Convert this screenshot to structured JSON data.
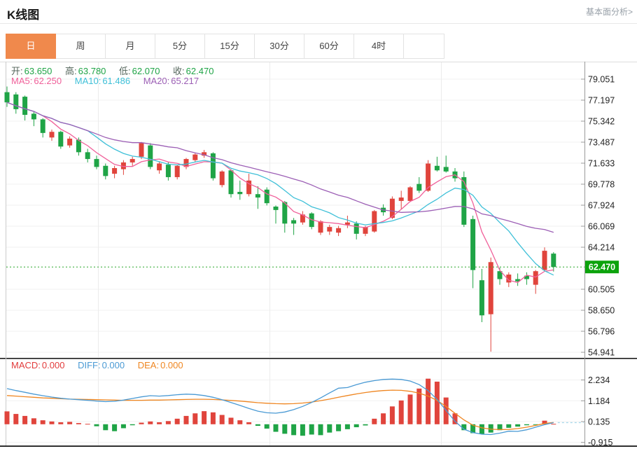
{
  "header": {
    "title": "K线图",
    "link": "基本面分析>"
  },
  "tabs": {
    "items": [
      "日",
      "周",
      "月",
      "5分",
      "15分",
      "30分",
      "60分",
      "4时"
    ],
    "selected": "日",
    "selected_index": 0,
    "selected_color": "#f0894c"
  },
  "main_legend": {
    "ohlc": [
      {
        "label": "开:",
        "value": "63.650"
      },
      {
        "label": "高:",
        "value": "63.780"
      },
      {
        "label": "低:",
        "value": "62.070"
      },
      {
        "label": "收:",
        "value": "62.470"
      }
    ],
    "ma": [
      {
        "label": "MA5:",
        "value": "62.250",
        "color": "#f0609a"
      },
      {
        "label": "MA10:",
        "value": "61.486",
        "color": "#3fc0d8"
      },
      {
        "label": "MA20:",
        "value": "65.217",
        "color": "#9c5fb5"
      }
    ]
  },
  "macd_legend": [
    {
      "label": "MACD:",
      "value": "0.000",
      "color": "#e23b3b"
    },
    {
      "label": "DIFF:",
      "value": "0.000",
      "color": "#4a9ad4"
    },
    {
      "label": "DEA:",
      "value": "0.000",
      "color": "#ef8621"
    }
  ],
  "colors": {
    "up": "#e0443c",
    "down": "#1fa446",
    "price_line": "#2aa52a",
    "price_badge": "#0ca30c",
    "diff_line": "#4a9ad4",
    "dea_line": "#ef8621",
    "dash_ext": "#a5d8ea",
    "grid": "#f0f0f0",
    "vgrid": "#ececec",
    "axis": "#999999",
    "tick_text": "#222222"
  },
  "chart_data": [
    {
      "type": "candlestick",
      "title": "K线图 (日K)",
      "legend_position": "top-left",
      "grid": true,
      "y_ticks": [
        79.051,
        77.197,
        75.342,
        73.487,
        71.633,
        69.778,
        67.924,
        66.069,
        64.214,
        60.505,
        58.65,
        56.796,
        54.941
      ],
      "ylim": [
        54.0,
        79.6
      ],
      "current_price": 62.47,
      "current_price_label": "62.470",
      "ma_periods": [
        5,
        10,
        20
      ],
      "ma_values_shown": {
        "MA5": 62.25,
        "MA10": 61.486,
        "MA20": 65.217
      },
      "ohlc_shown": {
        "open": 63.65,
        "high": 63.78,
        "low": 62.07,
        "close": 62.47
      },
      "candles_format": [
        "open",
        "high",
        "low",
        "close"
      ],
      "candles": [
        [
          77.9,
          78.4,
          76.6,
          77.0
        ],
        [
          77.7,
          77.9,
          76.0,
          76.4
        ],
        [
          77.5,
          77.6,
          75.4,
          75.9
        ],
        [
          76.0,
          76.2,
          74.9,
          75.5
        ],
        [
          75.5,
          75.6,
          73.9,
          74.3
        ],
        [
          73.9,
          74.6,
          73.6,
          74.4
        ],
        [
          74.4,
          74.5,
          72.9,
          73.1
        ],
        [
          73.2,
          74.0,
          73.0,
          73.8
        ],
        [
          73.7,
          73.9,
          72.3,
          72.6
        ],
        [
          72.6,
          72.9,
          71.7,
          72.0
        ],
        [
          72.0,
          72.3,
          71.1,
          71.3
        ],
        [
          71.4,
          71.6,
          70.2,
          70.5
        ],
        [
          70.7,
          71.4,
          70.3,
          71.2
        ],
        [
          71.1,
          71.9,
          70.6,
          71.7
        ],
        [
          71.7,
          72.2,
          71.4,
          72.0
        ],
        [
          72.2,
          73.5,
          72.0,
          73.4
        ],
        [
          73.2,
          73.4,
          71.1,
          71.3
        ],
        [
          71.0,
          71.8,
          70.7,
          71.6
        ],
        [
          71.5,
          71.7,
          70.1,
          70.4
        ],
        [
          70.4,
          71.5,
          70.2,
          71.4
        ],
        [
          71.3,
          72.1,
          71.1,
          72.0
        ],
        [
          71.9,
          72.5,
          71.7,
          72.4
        ],
        [
          72.3,
          72.8,
          72.1,
          72.6
        ],
        [
          72.5,
          72.6,
          70.1,
          70.3
        ],
        [
          69.7,
          71.0,
          69.5,
          70.9
        ],
        [
          71.0,
          71.1,
          68.6,
          68.9
        ],
        [
          69.1,
          70.1,
          68.4,
          68.9
        ],
        [
          68.9,
          70.7,
          68.7,
          70.1
        ],
        [
          68.9,
          69.6,
          67.6,
          68.6
        ],
        [
          69.3,
          69.5,
          67.9,
          68.1
        ],
        [
          67.8,
          67.9,
          66.3,
          67.5
        ],
        [
          68.2,
          68.3,
          65.5,
          66.3
        ],
        [
          66.6,
          66.8,
          65.3,
          66.3
        ],
        [
          66.4,
          67.4,
          66.2,
          67.1
        ],
        [
          67.2,
          67.3,
          65.8,
          66.0
        ],
        [
          65.5,
          66.6,
          65.3,
          66.5
        ],
        [
          65.6,
          66.2,
          65.3,
          66.0
        ],
        [
          65.5,
          66.1,
          65.2,
          65.9
        ],
        [
          66.2,
          67.0,
          65.9,
          66.4
        ],
        [
          66.3,
          66.5,
          64.9,
          65.4
        ],
        [
          65.4,
          66.1,
          65.2,
          66.0
        ],
        [
          65.6,
          67.5,
          65.5,
          67.4
        ],
        [
          67.7,
          68.0,
          67.0,
          67.3
        ],
        [
          66.8,
          68.7,
          66.7,
          68.5
        ],
        [
          68.3,
          69.2,
          67.6,
          68.6
        ],
        [
          68.3,
          69.6,
          68.2,
          69.5
        ],
        [
          69.8,
          70.4,
          69.0,
          69.2
        ],
        [
          69.2,
          71.9,
          69.1,
          71.6
        ],
        [
          71.4,
          72.2,
          70.9,
          71.0
        ],
        [
          71.3,
          72.3,
          70.8,
          70.9
        ],
        [
          70.9,
          71.2,
          70.0,
          70.3
        ],
        [
          70.4,
          70.9,
          66.0,
          66.2
        ],
        [
          66.7,
          67.0,
          60.6,
          62.2
        ],
        [
          61.3,
          62.3,
          57.6,
          58.2
        ],
        [
          58.3,
          63.3,
          55.0,
          62.9
        ],
        [
          62.1,
          62.4,
          60.9,
          61.4
        ],
        [
          61.1,
          62.0,
          60.7,
          61.8
        ],
        [
          61.4,
          61.9,
          60.8,
          61.2
        ],
        [
          61.7,
          62.0,
          60.9,
          61.4
        ],
        [
          60.9,
          62.2,
          60.1,
          62.1
        ],
        [
          62.2,
          64.2,
          62.1,
          63.9
        ],
        [
          63.65,
          63.78,
          62.07,
          62.47
        ]
      ]
    },
    {
      "type": "bar",
      "title": "MACD(12,26,9)",
      "grid": true,
      "y_ticks": [
        2.234,
        1.184,
        0.135,
        -0.915
      ],
      "ylim": [
        -1.2,
        2.9
      ],
      "values_shown": {
        "MACD": 0.0,
        "DIFF": 0.0,
        "DEA": 0.0
      },
      "macd_hist": [
        0.65,
        0.52,
        0.42,
        0.3,
        0.2,
        0.14,
        0.1,
        0.12,
        0.06,
        0.02,
        -0.1,
        -0.3,
        -0.35,
        -0.2,
        -0.05,
        0.08,
        0.14,
        0.1,
        0.16,
        0.28,
        0.42,
        0.55,
        0.66,
        0.6,
        0.47,
        0.33,
        0.2,
        0.1,
        -0.08,
        -0.22,
        -0.38,
        -0.48,
        -0.55,
        -0.58,
        -0.52,
        -0.55,
        -0.42,
        -0.35,
        -0.25,
        -0.15,
        -0.06,
        0.28,
        0.55,
        0.9,
        1.2,
        1.5,
        1.8,
        2.3,
        2.15,
        1.35,
        0.55,
        -0.3,
        -0.45,
        -0.5,
        -0.42,
        -0.3,
        -0.18,
        -0.12,
        -0.05,
        -0.03,
        0.18,
        0.02
      ],
      "diff_line": [
        1.8,
        1.7,
        1.61,
        1.52,
        1.44,
        1.37,
        1.31,
        1.27,
        1.24,
        1.21,
        1.17,
        1.14,
        1.16,
        1.22,
        1.3,
        1.38,
        1.44,
        1.42,
        1.45,
        1.49,
        1.52,
        1.5,
        1.45,
        1.36,
        1.24,
        1.1,
        0.95,
        0.8,
        0.66,
        0.58,
        0.56,
        0.62,
        0.74,
        0.9,
        1.1,
        1.33,
        1.58,
        1.82,
        1.85,
        2.0,
        2.12,
        2.2,
        2.26,
        2.28,
        2.26,
        2.18,
        2.0,
        1.7,
        1.25,
        0.7,
        0.15,
        -0.25,
        -0.42,
        -0.5,
        -0.52,
        -0.45,
        -0.35,
        -0.36,
        -0.28,
        -0.15,
        -0.02,
        0.08
      ],
      "dea_line": [
        1.45,
        1.42,
        1.39,
        1.36,
        1.33,
        1.31,
        1.29,
        1.27,
        1.26,
        1.25,
        1.24,
        1.23,
        1.22,
        1.21,
        1.21,
        1.21,
        1.22,
        1.22,
        1.23,
        1.24,
        1.25,
        1.26,
        1.26,
        1.25,
        1.23,
        1.2,
        1.17,
        1.13,
        1.09,
        1.06,
        1.04,
        1.03,
        1.04,
        1.07,
        1.12,
        1.19,
        1.27,
        1.36,
        1.45,
        1.53,
        1.6,
        1.66,
        1.7,
        1.72,
        1.71,
        1.66,
        1.57,
        1.42,
        1.2,
        0.9,
        0.55,
        0.22,
        -0.05,
        -0.18,
        -0.25,
        -0.27,
        -0.26,
        -0.22,
        -0.15,
        -0.06,
        0.04,
        0.09
      ]
    }
  ]
}
